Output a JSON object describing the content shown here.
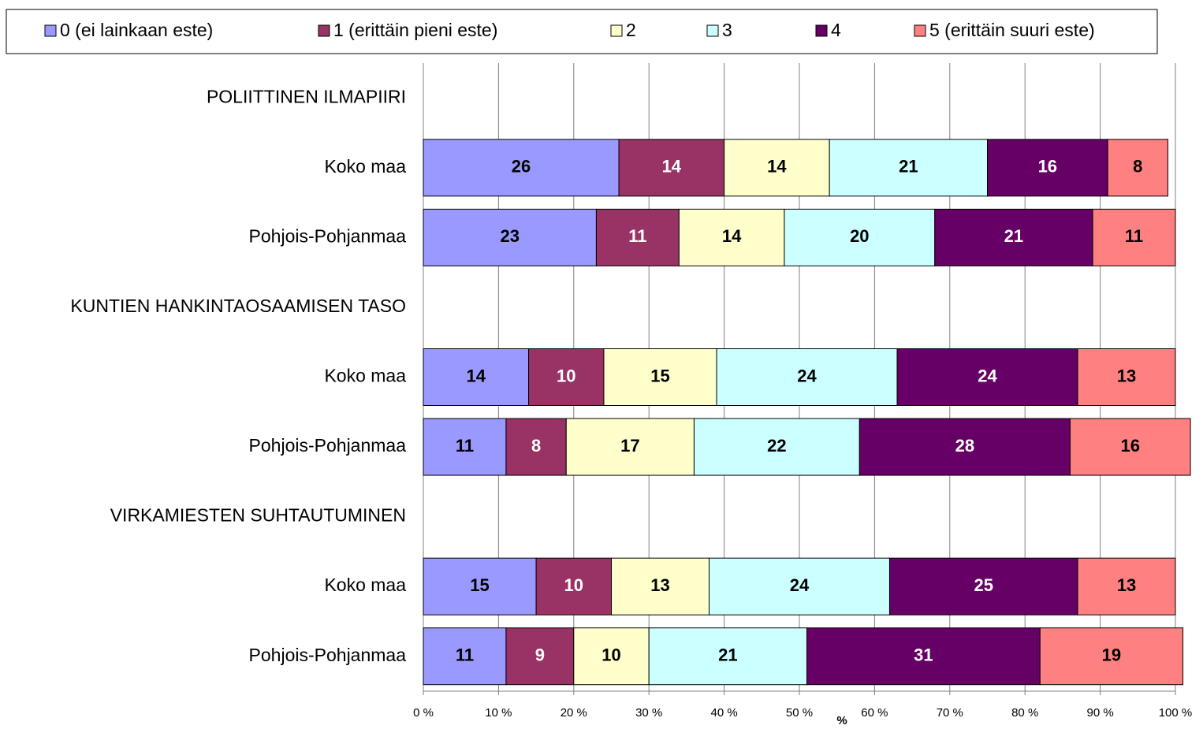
{
  "chart_data": {
    "type": "stacked_hbar",
    "categories": [
      "POLIITTINEN ILMAPIIRI",
      "Koko maa",
      "Pohjois-Pohjanmaa",
      "KUNTIEN HANKINTAOSAAMISEN TASO",
      "Koko maa",
      "Pohjois-Pohjanmaa",
      "VIRKAMIESTEN SUHTAUTUMINEN",
      "Koko maa",
      "Pohjois-Pohjanmaa"
    ],
    "series": [
      {
        "name": "0 (ei lainkaan este)",
        "color": "#9999ff",
        "values": [
          null,
          26,
          23,
          null,
          14,
          11,
          null,
          15,
          11
        ]
      },
      {
        "name": "1 (erittäin pieni este)",
        "color": "#993366",
        "values": [
          null,
          14,
          11,
          null,
          10,
          8,
          null,
          10,
          9
        ]
      },
      {
        "name": "2",
        "color": "#ffffcc",
        "values": [
          null,
          14,
          14,
          null,
          15,
          17,
          null,
          13,
          10
        ]
      },
      {
        "name": "3",
        "color": "#ccffff",
        "values": [
          null,
          21,
          20,
          null,
          24,
          22,
          null,
          24,
          21
        ]
      },
      {
        "name": "4",
        "color": "#660066",
        "values": [
          null,
          16,
          21,
          null,
          24,
          28,
          null,
          25,
          31
        ]
      },
      {
        "name": "5 (erittäin suuri este)",
        "color": "#ff8080",
        "values": [
          null,
          8,
          11,
          null,
          13,
          16,
          null,
          13,
          19
        ]
      }
    ],
    "x_label": "%",
    "xlim": [
      0,
      100
    ],
    "xticks": [
      {
        "value": 0,
        "label": "0 %"
      },
      {
        "value": 10,
        "label": "10 %"
      },
      {
        "value": 20,
        "label": "20 %"
      },
      {
        "value": 30,
        "label": "30 %"
      },
      {
        "value": 40,
        "label": "40 %"
      },
      {
        "value": 50,
        "label": "50 %"
      },
      {
        "value": 60,
        "label": "60 %"
      },
      {
        "value": 70,
        "label": "70 %"
      },
      {
        "value": 80,
        "label": "80 %"
      },
      {
        "value": 90,
        "label": "90 %"
      },
      {
        "value": 100,
        "label": "100 %"
      }
    ],
    "grid": true,
    "legend": "top"
  }
}
